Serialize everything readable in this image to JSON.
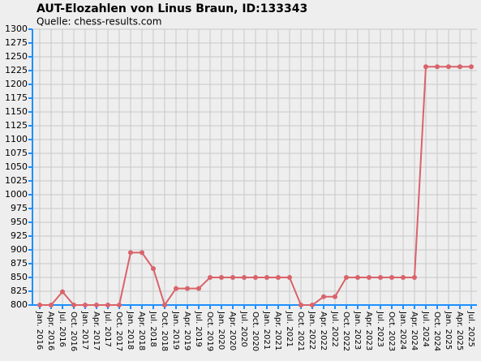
{
  "chart_data": {
    "type": "line",
    "title": "AUT-Elozahlen von Linus Braun, ID:133343",
    "subtitle": "Quelle: chess-results.com",
    "categories": [
      "Jan. 2016",
      "Apr. 2016",
      "Jul. 2016",
      "Oct. 2016",
      "Jan. 2017",
      "Apr. 2017",
      "Jul. 2017",
      "Oct. 2017",
      "Jan. 2018",
      "Apr. 2018",
      "Jul. 2018",
      "Oct. 2018",
      "Jan. 2019",
      "Apr. 2019",
      "Jul. 2019",
      "Oct. 2019",
      "Jan. 2020",
      "Apr. 2020",
      "Jul. 2020",
      "Oct. 2020",
      "Jan. 2021",
      "Apr. 2021",
      "Jul. 2021",
      "Oct. 2021",
      "Jan. 2022",
      "Apr. 2022",
      "Jul. 2022",
      "Oct. 2022",
      "Jan. 2023",
      "Apr. 2023",
      "Jul. 2023",
      "Oct. 2023",
      "Jan. 2024",
      "Apr. 2024",
      "Jul. 2024",
      "Oct. 2024",
      "Jan. 2025",
      "Apr. 2025",
      "Jul. 2025"
    ],
    "values": [
      800,
      800,
      824,
      800,
      800,
      800,
      800,
      800,
      895,
      895,
      866,
      800,
      830,
      830,
      830,
      850,
      850,
      850,
      850,
      850,
      850,
      850,
      850,
      800,
      800,
      815,
      815,
      850,
      850,
      850,
      850,
      850,
      850,
      850,
      1232,
      1232,
      1232,
      1232,
      1232
    ],
    "color": "#d9636b",
    "ylim": [
      800,
      1300
    ],
    "yticks": [
      800,
      825,
      850,
      875,
      900,
      925,
      950,
      975,
      1000,
      1025,
      1050,
      1075,
      1100,
      1125,
      1150,
      1175,
      1200,
      1225,
      1250,
      1275,
      1300
    ],
    "grid": true
  }
}
